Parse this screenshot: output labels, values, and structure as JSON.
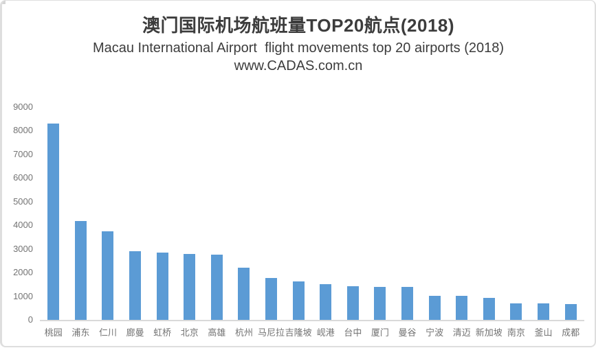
{
  "chart_data": {
    "type": "bar",
    "title": "澳门国际机场航班量TOP20航点(2018)",
    "subtitle": "Macau International Airport  flight movements top 20 airports (2018)",
    "source": "www.CADAS.com.cn",
    "categories": [
      "桃园",
      "浦东",
      "仁川",
      "廊曼",
      "虹桥",
      "北京",
      "高雄",
      "杭州",
      "马尼拉",
      "吉隆坡",
      "岘港",
      "台中",
      "厦门",
      "曼谷",
      "宁波",
      "清迈",
      "新加坡",
      "南京",
      "釜山",
      "成都"
    ],
    "values": [
      8290,
      4170,
      3750,
      2900,
      2850,
      2800,
      2750,
      2220,
      1760,
      1620,
      1520,
      1420,
      1390,
      1380,
      1030,
      1010,
      930,
      700,
      690,
      680
    ],
    "xlabel": "",
    "ylabel": "",
    "yticks": [
      9000,
      8000,
      7000,
      6000,
      5000,
      4000,
      3000,
      2000,
      1000,
      0
    ],
    "ylim": [
      0,
      9000
    ],
    "grid": false,
    "legend": false,
    "bar_color": "#5b9bd5",
    "axis_line_color": "#d9d9d9",
    "tick_label_color": "#737373",
    "title_color": "#3c3c3c"
  }
}
